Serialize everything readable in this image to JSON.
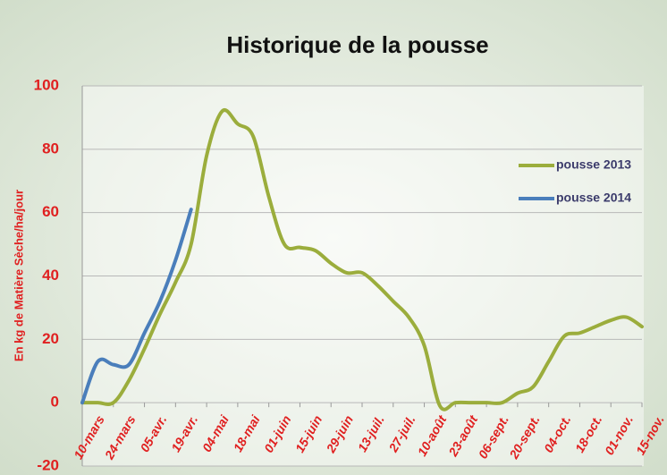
{
  "chart_data": {
    "type": "line",
    "title": "Historique de la pousse",
    "y_label": "En kg de Matière Sèche/ha/jour",
    "categories": [
      "10-mars",
      null,
      "24-mars",
      null,
      "05-avr.",
      null,
      "19-avr.",
      null,
      "04-mai",
      null,
      "18-mai",
      null,
      "01-juin",
      null,
      "15-juin",
      null,
      "29-juin",
      null,
      "13-juil.",
      null,
      "27-juil.",
      null,
      "10-août",
      null,
      "23-août",
      null,
      "06-sept.",
      null,
      "20-sept.",
      null,
      "04-oct.",
      null,
      "18-oct.",
      null,
      "01-nov.",
      null,
      "15-nov."
    ],
    "series": [
      {
        "name": "pousse 2013",
        "color": "#9bad3c",
        "values": [
          0,
          0,
          0,
          7,
          17,
          28,
          38,
          50,
          78,
          92,
          88,
          84,
          65,
          50,
          49,
          48,
          44,
          41,
          41,
          37,
          32,
          27,
          18,
          -1,
          0,
          0,
          0,
          0,
          3,
          5,
          13,
          21,
          22,
          24,
          26,
          27,
          24
        ]
      },
      {
        "name": "pousse 2014",
        "color": "#4a7ebb",
        "values": [
          0,
          13,
          12,
          12,
          22,
          32,
          45,
          61,
          null,
          null,
          null,
          null,
          null,
          null,
          null,
          null,
          null,
          null,
          null,
          null,
          null,
          null,
          null,
          null,
          null,
          null,
          null,
          null,
          null,
          null,
          null,
          null,
          null,
          null,
          null,
          null,
          null
        ]
      }
    ],
    "ylim": [
      -20,
      100
    ],
    "yticks": [
      -20,
      0,
      20,
      40,
      60,
      80,
      100
    ],
    "grid": true,
    "legend": "right"
  }
}
